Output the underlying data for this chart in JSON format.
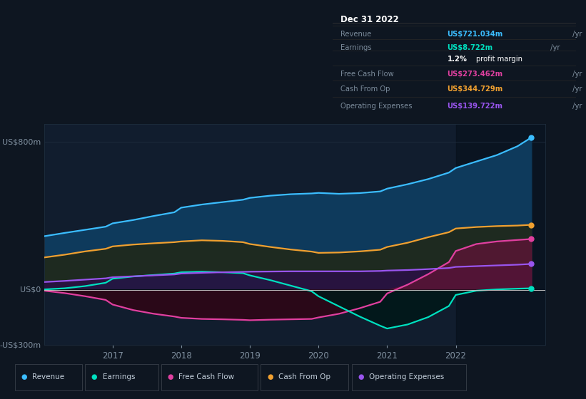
{
  "bg_color": "#0e1621",
  "plot_bg_color": "#111d2e",
  "y_label_top": "US$800m",
  "y_label_zero": "US$0",
  "y_label_bottom": "-US$300m",
  "ylim": [
    -300,
    900
  ],
  "xlim": [
    2016.0,
    2023.3
  ],
  "x_ticks": [
    2017,
    2018,
    2019,
    2020,
    2021,
    2022
  ],
  "grid_color": "#1e2d3d",
  "zero_line_color": "#c0c0c0",
  "revenue": {
    "color": "#3bbdff",
    "fill_color": "#0e3a5c",
    "x": [
      2016.0,
      2016.3,
      2016.6,
      2016.9,
      2017.0,
      2017.3,
      2017.6,
      2017.9,
      2018.0,
      2018.3,
      2018.6,
      2018.9,
      2019.0,
      2019.3,
      2019.6,
      2019.9,
      2020.0,
      2020.3,
      2020.6,
      2020.9,
      2021.0,
      2021.3,
      2021.6,
      2021.9,
      2022.0,
      2022.3,
      2022.6,
      2022.9,
      2023.1
    ],
    "y": [
      290,
      308,
      325,
      342,
      360,
      378,
      400,
      420,
      445,
      462,
      475,
      488,
      498,
      510,
      518,
      522,
      525,
      520,
      524,
      533,
      548,
      572,
      600,
      635,
      660,
      695,
      730,
      778,
      825
    ]
  },
  "cash_from_op": {
    "color": "#f0a030",
    "fill_color": "#2a2010",
    "x": [
      2016.0,
      2016.3,
      2016.6,
      2016.9,
      2017.0,
      2017.3,
      2017.6,
      2017.9,
      2018.0,
      2018.3,
      2018.6,
      2018.9,
      2019.0,
      2019.3,
      2019.6,
      2019.9,
      2020.0,
      2020.3,
      2020.6,
      2020.9,
      2021.0,
      2021.3,
      2021.6,
      2021.9,
      2022.0,
      2022.3,
      2022.6,
      2022.9,
      2023.1
    ],
    "y": [
      175,
      190,
      208,
      222,
      235,
      245,
      252,
      258,
      262,
      268,
      265,
      258,
      248,
      232,
      218,
      207,
      200,
      202,
      208,
      217,
      232,
      255,
      285,
      312,
      332,
      340,
      345,
      348,
      352
    ]
  },
  "free_cash_flow": {
    "color": "#e040a0",
    "fill_color": "#3a0820",
    "x": [
      2016.0,
      2016.3,
      2016.6,
      2016.9,
      2017.0,
      2017.3,
      2017.6,
      2017.9,
      2018.0,
      2018.3,
      2018.6,
      2018.9,
      2019.0,
      2019.3,
      2019.6,
      2019.9,
      2020.0,
      2020.3,
      2020.6,
      2020.9,
      2021.0,
      2021.3,
      2021.6,
      2021.9,
      2022.0,
      2022.3,
      2022.6,
      2022.9,
      2023.1
    ],
    "y": [
      -5,
      -18,
      -35,
      -55,
      -80,
      -110,
      -130,
      -145,
      -152,
      -158,
      -160,
      -163,
      -165,
      -162,
      -160,
      -158,
      -150,
      -130,
      -100,
      -65,
      -20,
      28,
      85,
      150,
      210,
      248,
      262,
      270,
      275
    ]
  },
  "earnings": {
    "color": "#00e0c0",
    "fill_color": "#003530",
    "x": [
      2016.0,
      2016.3,
      2016.6,
      2016.9,
      2017.0,
      2017.3,
      2017.6,
      2017.9,
      2018.0,
      2018.3,
      2018.6,
      2018.9,
      2019.0,
      2019.3,
      2019.6,
      2019.9,
      2020.0,
      2020.3,
      2020.6,
      2020.9,
      2021.0,
      2021.3,
      2021.6,
      2021.9,
      2022.0,
      2022.3,
      2022.6,
      2022.9,
      2023.1
    ],
    "y": [
      2,
      8,
      20,
      38,
      60,
      72,
      80,
      88,
      95,
      98,
      95,
      90,
      78,
      52,
      22,
      -8,
      -35,
      -90,
      -145,
      -195,
      -210,
      -188,
      -148,
      -88,
      -28,
      -5,
      2,
      6,
      8
    ]
  },
  "operating_expenses": {
    "color": "#9955ee",
    "fill_color": "#2a1045",
    "x": [
      2016.0,
      2016.3,
      2016.6,
      2016.9,
      2017.0,
      2017.3,
      2017.6,
      2017.9,
      2018.0,
      2018.3,
      2018.6,
      2018.9,
      2019.0,
      2019.3,
      2019.6,
      2019.9,
      2020.0,
      2020.3,
      2020.6,
      2020.9,
      2021.0,
      2021.3,
      2021.6,
      2021.9,
      2022.0,
      2022.3,
      2022.6,
      2022.9,
      2023.1
    ],
    "y": [
      42,
      48,
      55,
      62,
      68,
      73,
      78,
      83,
      88,
      92,
      95,
      97,
      98,
      99,
      100,
      100,
      100,
      100,
      100,
      102,
      104,
      107,
      112,
      118,
      124,
      128,
      132,
      136,
      140
    ]
  },
  "legend": [
    {
      "label": "Revenue",
      "color": "#3bbdff"
    },
    {
      "label": "Earnings",
      "color": "#00e0c0"
    },
    {
      "label": "Free Cash Flow",
      "color": "#e040a0"
    },
    {
      "label": "Cash From Op",
      "color": "#f0a030"
    },
    {
      "label": "Operating Expenses",
      "color": "#9955ee"
    }
  ],
  "info_box": {
    "title": "Dec 31 2022",
    "rows": [
      {
        "label": "Revenue",
        "value": "US$721.034m /yr",
        "value_color": "#3bbdff"
      },
      {
        "label": "Earnings",
        "value": "US$8.722m /yr",
        "value_color": "#00e0c0"
      },
      {
        "label": "",
        "value": "1.2% profit margin",
        "value_color": "#ffffff"
      },
      {
        "label": "Free Cash Flow",
        "value": "US$273.462m /yr",
        "value_color": "#e040a0"
      },
      {
        "label": "Cash From Op",
        "value": "US$344.729m /yr",
        "value_color": "#f0a030"
      },
      {
        "label": "Operating Expenses",
        "value": "US$139.722m /yr",
        "value_color": "#9955ee"
      }
    ]
  }
}
